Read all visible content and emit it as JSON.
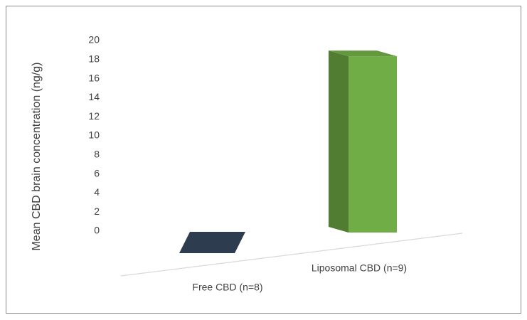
{
  "chart_data": {
    "type": "bar3d",
    "y_label": "Mean CBD brain concentration (ng/g)",
    "categories": [
      "Free CBD (n=8)",
      "Liposomal CBD (n=9)"
    ],
    "values": [
      0,
      18.5
    ],
    "colors": [
      "#2e3c50",
      "#70ad47"
    ],
    "ylim": [
      0,
      20
    ],
    "yticks": [
      0,
      2,
      4,
      6,
      8,
      10,
      12,
      14,
      16,
      18,
      20
    ],
    "grid": false
  }
}
